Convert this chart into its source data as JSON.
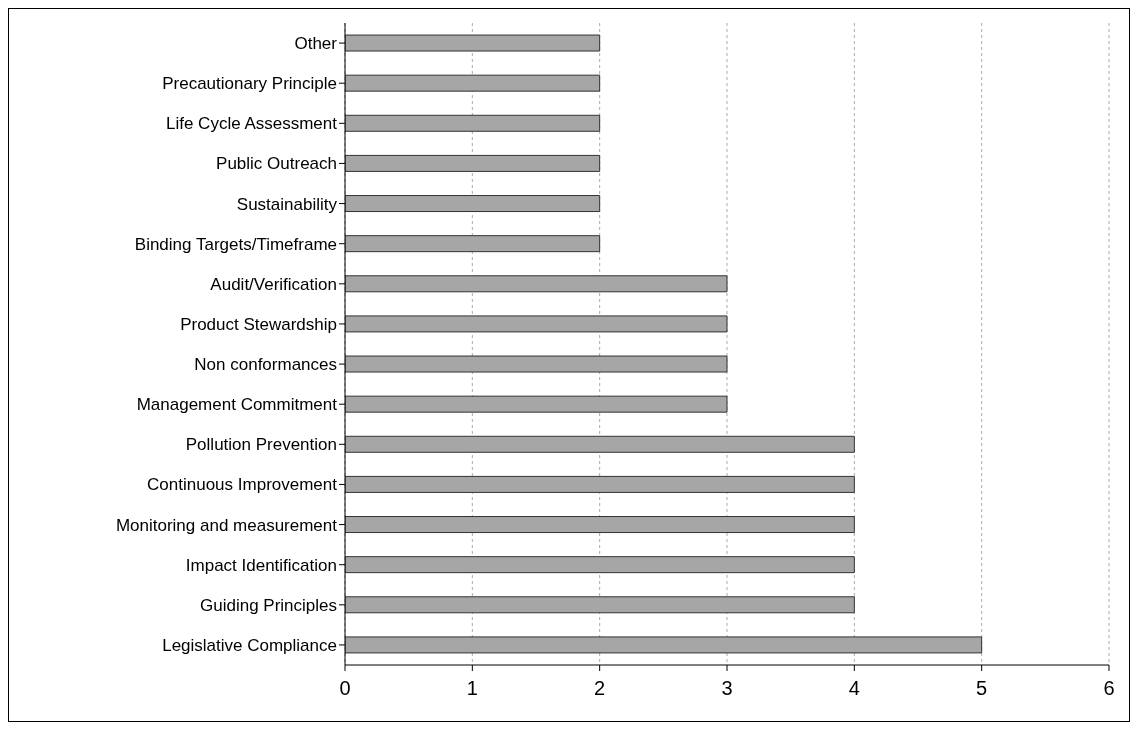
{
  "chart_data": {
    "type": "bar",
    "orientation": "horizontal",
    "categories": [
      "Other",
      "Precautionary Principle",
      "Life Cycle Assessment",
      "Public Outreach",
      "Sustainability",
      "Binding Targets/Timeframe",
      "Audit/Verification",
      "Product Stewardship",
      "Non conformances",
      "Management Commitment",
      "Pollution Prevention",
      "Continuous Improvement",
      "Monitoring and measurement",
      "Impact Identification",
      "Guiding Principles",
      "Legislative Compliance"
    ],
    "values": [
      2,
      2,
      2,
      2,
      2,
      2,
      3,
      3,
      3,
      3,
      4,
      4,
      4,
      4,
      4,
      5
    ],
    "color": "#a6a6a6",
    "xlim": [
      0,
      6
    ],
    "xticks": [
      0,
      1,
      2,
      3,
      4,
      5,
      6
    ],
    "grid": "x"
  }
}
